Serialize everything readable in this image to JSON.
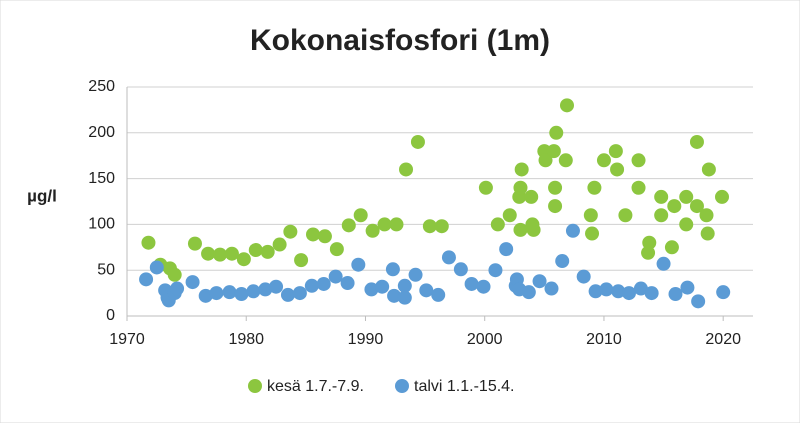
{
  "chart_data": {
    "type": "scatter",
    "title": "Kokonaisfosfori (1m)",
    "y_label": "µg/l",
    "xlim": [
      1970,
      2022.5
    ],
    "xticks": [
      1970,
      1980,
      1990,
      2000,
      2010,
      2020
    ],
    "ylim": [
      0,
      250
    ],
    "yticks": [
      0,
      50,
      100,
      150,
      200,
      250
    ],
    "grid": true,
    "legend": "bottom",
    "series": [
      {
        "name": "kesä 1.7.-7.9.",
        "color": "#8cc63f",
        "x": [
          1971.8,
          1972.8,
          1973.6,
          1974.0,
          1975.7,
          1976.8,
          1977.8,
          1978.8,
          1979.8,
          1980.8,
          1981.8,
          1982.8,
          1983.7,
          1984.6,
          1985.6,
          1986.6,
          1987.6,
          1988.6,
          1989.6,
          1990.6,
          1991.6,
          1992.6,
          1993.4,
          1994.4,
          1995.4,
          1996.4,
          2000.1,
          2001.1,
          2002.1,
          2002.9,
          2003.0,
          2003.1,
          2003.0,
          2003.9,
          2004.0,
          2004.1,
          2005.0,
          2005.1,
          2005.8,
          2006.0,
          2005.9,
          2005.9,
          2006.8,
          2006.9,
          2008.9,
          2009.0,
          2009.2,
          2010.0,
          2011.0,
          2011.1,
          2011.8,
          2012.9,
          2012.9,
          2013.8,
          2013.7,
          2014.8,
          2014.8,
          2015.7,
          2015.9,
          2016.9,
          2016.9,
          2017.8,
          2017.8,
          2018.6,
          2018.7,
          2018.8,
          2019.9
        ],
        "values": [
          80,
          56,
          52,
          45,
          79,
          68,
          67,
          68,
          62,
          72,
          70,
          78,
          92,
          61,
          89,
          87,
          73,
          99,
          110,
          93,
          100,
          100,
          160,
          190,
          98,
          98,
          140,
          100,
          110,
          130,
          140,
          160,
          94,
          130,
          100,
          94,
          180,
          170,
          180,
          200,
          140,
          120,
          170,
          230,
          110,
          90,
          140,
          170,
          180,
          160,
          110,
          170,
          140,
          80,
          69,
          130,
          110,
          75,
          120,
          100,
          130,
          190,
          120,
          110,
          90,
          160,
          130
        ]
      },
      {
        "name": "talvi 1.1.-15.4.",
        "color": "#5b9bd5",
        "x": [
          1971.6,
          1972.5,
          1973.2,
          1973.4,
          1973.5,
          1974.0,
          1974.2,
          1975.5,
          1976.6,
          1977.5,
          1978.6,
          1979.6,
          1980.6,
          1981.6,
          1982.5,
          1983.5,
          1984.5,
          1985.5,
          1986.5,
          1987.5,
          1988.5,
          1989.4,
          1990.5,
          1991.4,
          1992.3,
          1992.4,
          1993.3,
          1993.3,
          1994.2,
          1995.1,
          1996.1,
          1997.0,
          1998.0,
          1998.9,
          1999.9,
          2000.9,
          2001.8,
          2002.6,
          2002.7,
          2002.9,
          2003.7,
          2004.6,
          2005.6,
          2006.5,
          2007.4,
          2008.3,
          2009.3,
          2010.2,
          2011.2,
          2012.1,
          2013.1,
          2014.0,
          2015.0,
          2016.0,
          2017.0,
          2017.9,
          2020.0
        ],
        "values": [
          40,
          53,
          28,
          20,
          17,
          25,
          30,
          37,
          22,
          25,
          26,
          24,
          27,
          29,
          32,
          23,
          25,
          33,
          35,
          43,
          36,
          56,
          29,
          32,
          51,
          22,
          33,
          20,
          45,
          28,
          23,
          64,
          51,
          35,
          32,
          50,
          73,
          33,
          40,
          29,
          26,
          38,
          30,
          60,
          93,
          43,
          27,
          29,
          27,
          25,
          30,
          25,
          57,
          24,
          31,
          16,
          26
        ]
      }
    ]
  }
}
